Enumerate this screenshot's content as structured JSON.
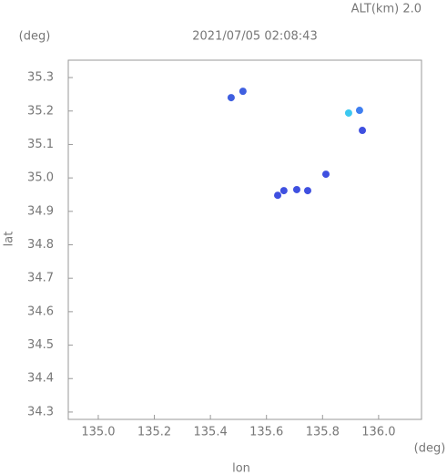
{
  "chart_data": {
    "type": "scatter",
    "title": "2021/07/05 02:08:43",
    "subtitle": "ALT(km) 2.0",
    "xlabel": "lon",
    "ylabel": "lat",
    "xunit": "(deg)",
    "yunit": "(deg)",
    "x": [
      135.474,
      135.516,
      135.893,
      135.932,
      135.942,
      135.812,
      135.708,
      135.662,
      135.64,
      135.747
    ],
    "y": [
      35.24,
      35.259,
      35.194,
      35.202,
      35.142,
      35.011,
      34.965,
      34.962,
      34.948,
      34.962
    ],
    "colors": [
      "#3f5fe0",
      "#3f5fe0",
      "#3cc8f0",
      "#3f7ff0",
      "#3f50e0",
      "#3f50e0",
      "#3f50e0",
      "#3f50e0",
      "#3f50e0",
      "#3f50e0"
    ],
    "xlim": [
      134.893,
      136.153
    ],
    "ylim": [
      34.278,
      35.352
    ],
    "xticks": [
      {
        "value": 135,
        "label": "135.0"
      },
      135.2,
      135.4,
      135.6,
      135.8,
      {
        "value": 136,
        "label": "136.0"
      }
    ],
    "yticks": [
      34.3,
      34.4,
      34.5,
      34.6,
      34.7,
      34.8,
      34.9,
      {
        "value": 35,
        "label": "35.0"
      },
      35.1,
      35.2,
      35.3
    ]
  }
}
